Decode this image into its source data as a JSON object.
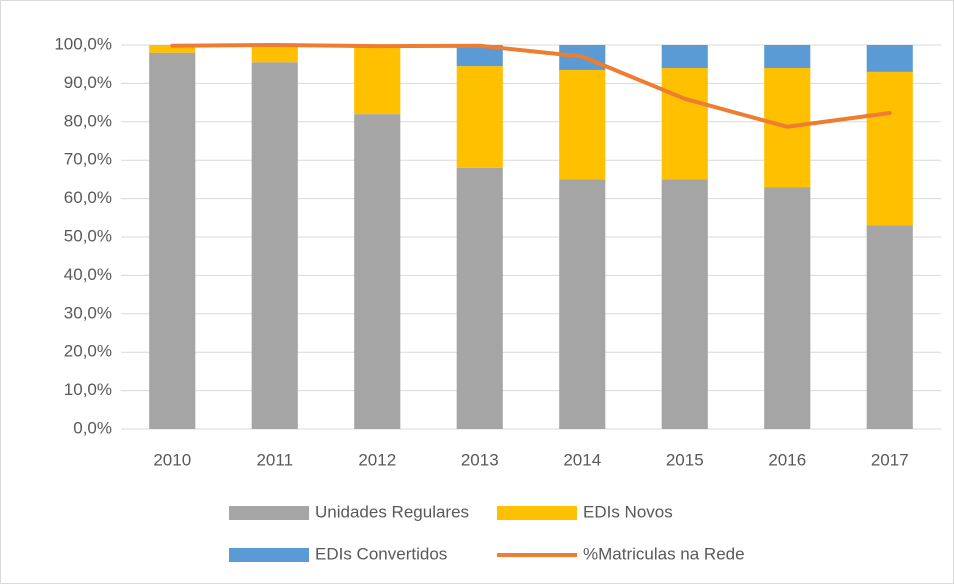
{
  "chart_data": {
    "type": "bar",
    "stacked": true,
    "categories": [
      "2010",
      "2011",
      "2012",
      "2013",
      "2014",
      "2015",
      "2016",
      "2017"
    ],
    "series": [
      {
        "name": "Unidades Regulares",
        "color": "#a5a5a5",
        "type": "bar",
        "values": [
          98,
          95.5,
          82,
          68,
          65,
          65,
          63,
          53
        ]
      },
      {
        "name": "EDIs Novos",
        "color": "#ffc000",
        "type": "bar",
        "values": [
          2,
          4.5,
          18,
          26.5,
          28.5,
          29,
          31,
          40
        ]
      },
      {
        "name": "EDIs Convertidos",
        "color": "#5b9bd5",
        "type": "bar",
        "values": [
          0,
          0,
          0,
          5.5,
          6.5,
          6,
          6,
          7
        ]
      },
      {
        "name": "%Matriculas na Rede",
        "color": "#ed7d31",
        "type": "line",
        "values": [
          99.8,
          100,
          99.7,
          99.8,
          97,
          86,
          78.7,
          82.3
        ]
      }
    ],
    "ylim": [
      0,
      100
    ],
    "yticks": [
      {
        "value": 0,
        "label": "0,0%"
      },
      {
        "value": 10,
        "label": "10,0%"
      },
      {
        "value": 20,
        "label": "20,0%"
      },
      {
        "value": 30,
        "label": "30,0%"
      },
      {
        "value": 40,
        "label": "40,0%"
      },
      {
        "value": 50,
        "label": "50,0%"
      },
      {
        "value": 60,
        "label": "60,0%"
      },
      {
        "value": 70,
        "label": "70,0%"
      },
      {
        "value": 80,
        "label": "80,0%"
      },
      {
        "value": 90,
        "label": "90,0%"
      },
      {
        "value": 100,
        "label": "100,0%"
      }
    ],
    "grid": true,
    "legend": "bottom"
  }
}
